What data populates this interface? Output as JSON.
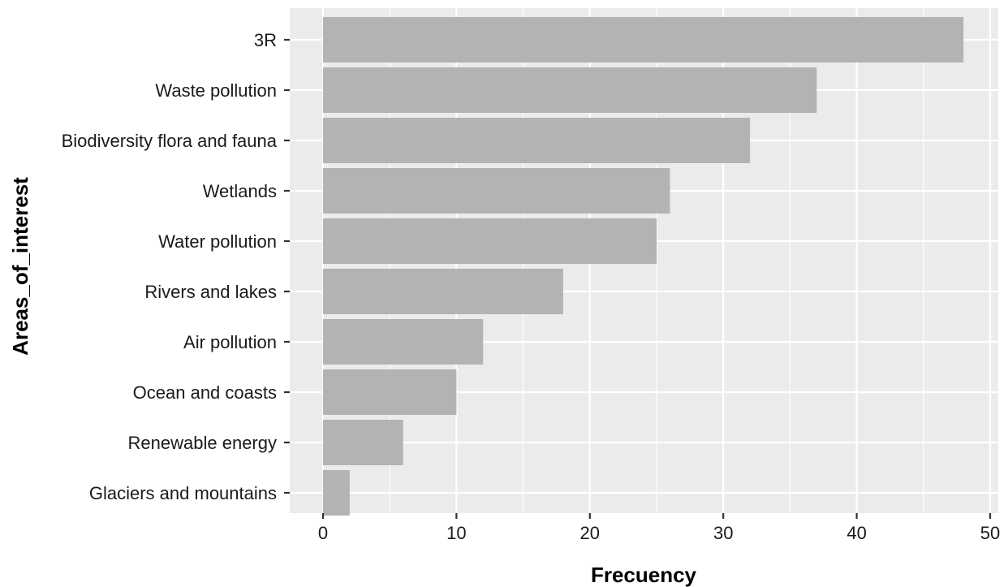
{
  "chart_data": {
    "type": "bar",
    "orientation": "horizontal",
    "title": "",
    "xlabel": "Frecuency",
    "ylabel": "Areas_of_interest",
    "categories": [
      "3R",
      "Waste pollution",
      "Biodiversity flora and fauna",
      "Wetlands",
      "Water pollution",
      "Rivers and lakes",
      "Air pollution",
      "Ocean and coasts",
      "Renewable energy",
      "Glaciers and mountains"
    ],
    "values": [
      48,
      37,
      32,
      26,
      25,
      18,
      12,
      10,
      6,
      2
    ],
    "xlim": [
      0,
      50
    ],
    "x_ticks": [
      0,
      10,
      20,
      30,
      40,
      50
    ],
    "grid": true,
    "legend": "none",
    "colors": {
      "bar": "#b3b3b3",
      "panel": "#ebebeb",
      "grid": "#ffffff"
    }
  }
}
